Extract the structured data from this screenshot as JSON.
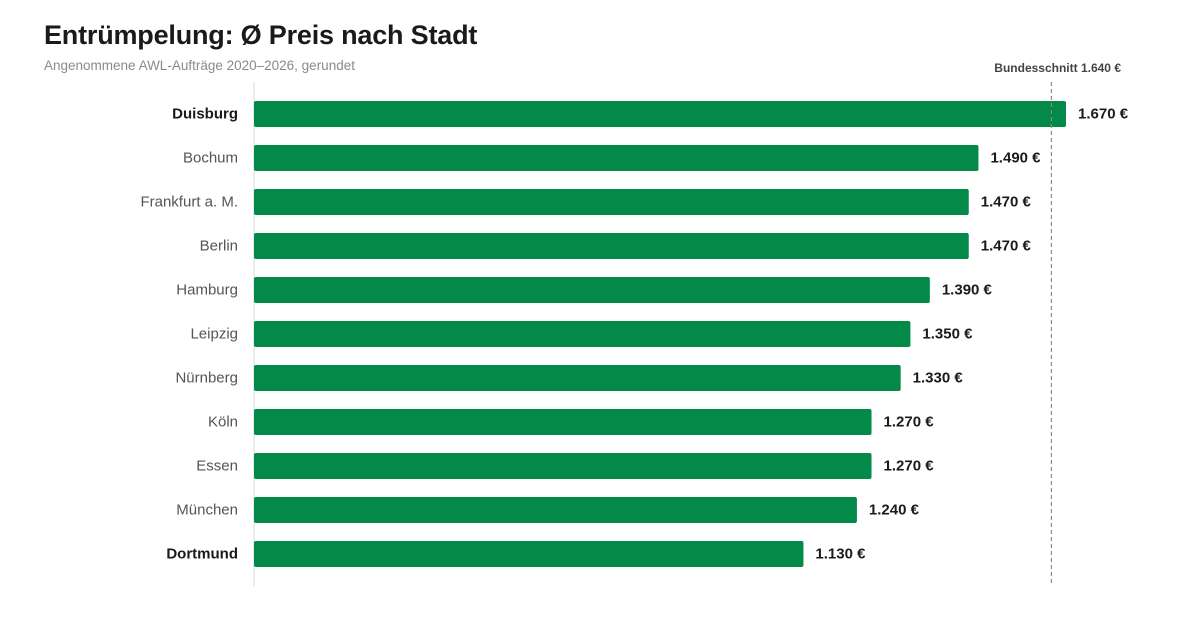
{
  "title": "Entrümpelung: Ø Preis nach Stadt",
  "subtitle": "Angenommene AWL-Aufträge 2020–2026, gerundet",
  "colors": {
    "bar": "#038a48",
    "axis": "#d8d8d8",
    "reference_line": "#8c8c8c"
  },
  "chart_data": {
    "type": "bar",
    "orientation": "horizontal",
    "categories": [
      "Duisburg",
      "Bochum",
      "Frankfurt a. M.",
      "Berlin",
      "Hamburg",
      "Leipzig",
      "Nürnberg",
      "Köln",
      "Essen",
      "München",
      "Dortmund"
    ],
    "values": [
      1670,
      1490,
      1470,
      1470,
      1390,
      1350,
      1330,
      1270,
      1270,
      1240,
      1130
    ],
    "value_labels": [
      "1.670 €",
      "1.490 €",
      "1.470 €",
      "1.470 €",
      "1.390 €",
      "1.350 €",
      "1.330 €",
      "1.270 €",
      "1.270 €",
      "1.240 €",
      "1.130 €"
    ],
    "highlighted": [
      "Duisburg",
      "Dortmund"
    ],
    "xlim": [
      0,
      1670
    ],
    "reference_line": {
      "value": 1640,
      "label": "Bundesschnitt 1.640 €"
    },
    "grid": false,
    "legend": "none"
  }
}
